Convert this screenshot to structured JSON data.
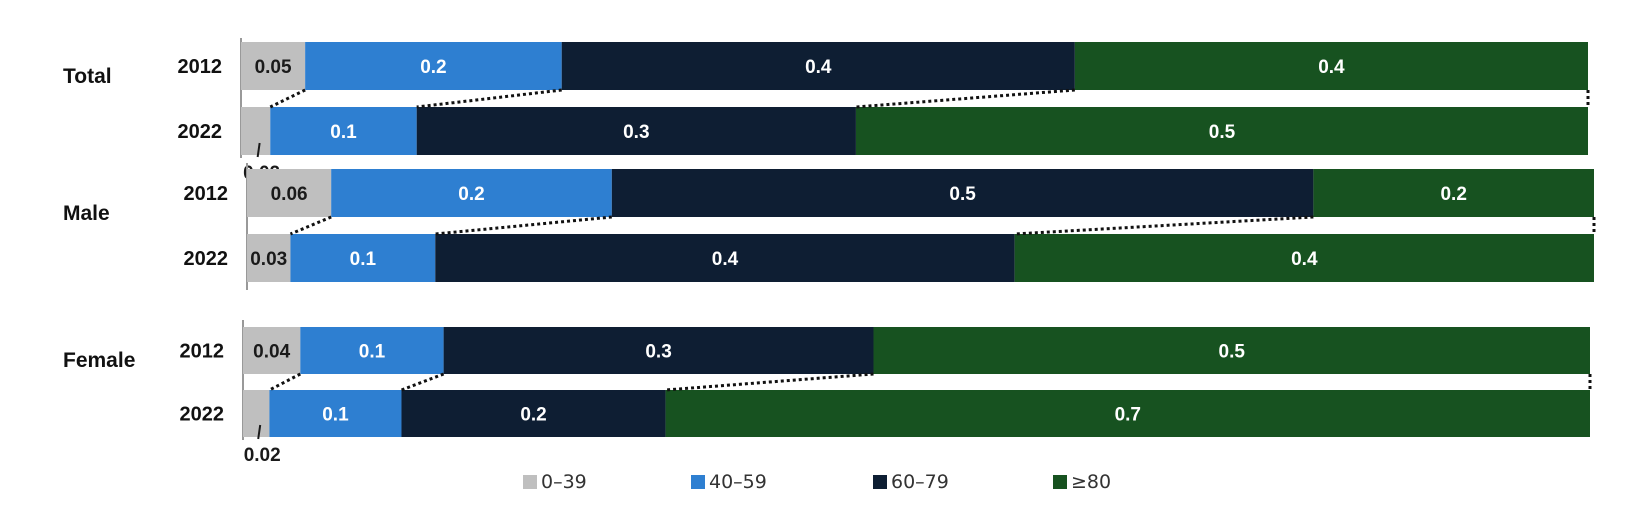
{
  "chart_data": {
    "type": "bar",
    "orientation": "horizontal",
    "stacked": true,
    "groups": [
      {
        "label": "Total",
        "bars": [
          {
            "year": "2012",
            "values": [
              0.05,
              0.2,
              0.4,
              0.4
            ],
            "labels": [
              "0.05",
              "0.2",
              "0.4",
              "0.4"
            ]
          },
          {
            "year": "2022",
            "values": [
              0.02,
              0.1,
              0.3,
              0.5
            ],
            "labels": [
              "0.02",
              "0.1",
              "0.3",
              "0.5"
            ]
          }
        ]
      },
      {
        "label": "Male",
        "bars": [
          {
            "year": "2012",
            "values": [
              0.06,
              0.2,
              0.5,
              0.2
            ],
            "labels": [
              "0.06",
              "0.2",
              "0.5",
              "0.2"
            ]
          },
          {
            "year": "2022",
            "values": [
              0.03,
              0.1,
              0.4,
              0.4
            ],
            "labels": [
              "0.03",
              "0.1",
              "0.4",
              "0.4"
            ]
          }
        ]
      },
      {
        "label": "Female",
        "bars": [
          {
            "year": "2012",
            "values": [
              0.04,
              0.1,
              0.3,
              0.5
            ],
            "labels": [
              "0.04",
              "0.1",
              "0.3",
              "0.5"
            ]
          },
          {
            "year": "2022",
            "values": [
              0.02,
              0.1,
              0.2,
              0.7
            ],
            "labels": [
              "0.02",
              "0.1",
              "0.2",
              "0.7"
            ]
          }
        ]
      }
    ],
    "series": [
      {
        "name": "0–39",
        "color": "#bfbfbf",
        "label_color": "#1a1a1a"
      },
      {
        "name": "40–59",
        "color": "#2e7fd1",
        "label_color": "#ffffff"
      },
      {
        "name": "60–79",
        "color": "#0e1e33",
        "label_color": "#ffffff"
      },
      {
        "name": "≥80",
        "color": "#175220",
        "label_color": "#ffffff"
      }
    ],
    "connectors": "dotted",
    "grid": false,
    "legend_position": "bottom"
  }
}
